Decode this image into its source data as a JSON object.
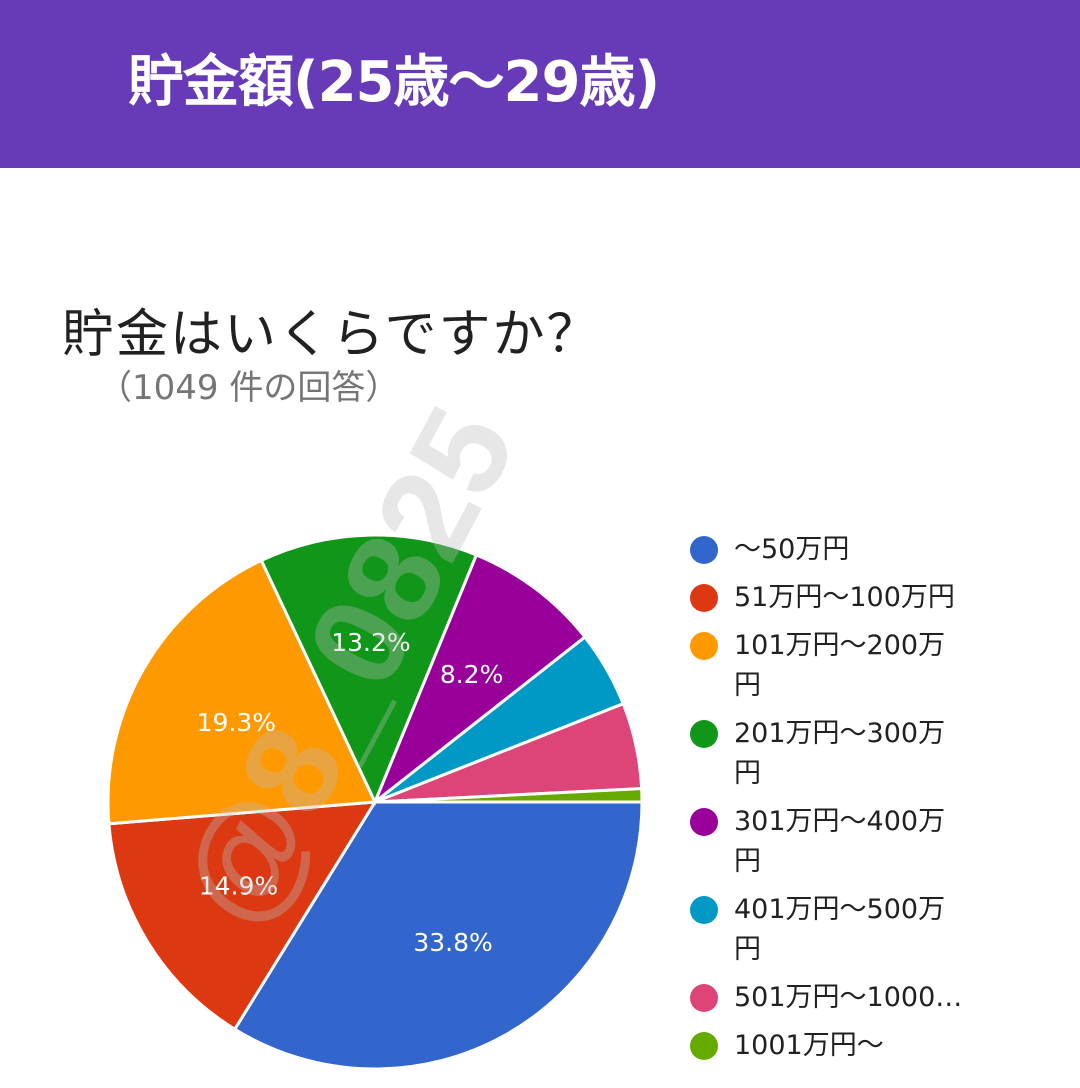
{
  "header": {
    "title": "貯金額(25歳〜29歳)",
    "bg_color": "#673ab7"
  },
  "question": {
    "title": "貯金はいくらですか？",
    "responses": "（1049 件の回答）"
  },
  "chart_data": {
    "type": "pie",
    "categories": [
      "〜50万円",
      "51万円〜100万円",
      "101万円〜200万円",
      "201万円〜300万円",
      "301万円〜400万円",
      "401万円〜500万円",
      "501万円〜1000…",
      "1001万円〜"
    ],
    "values": [
      33.8,
      14.9,
      19.3,
      13.2,
      8.2,
      4.6,
      5.2,
      0.8
    ],
    "data_labels": [
      "33.8%",
      "14.9%",
      "19.3%",
      "13.2%",
      "8.2%",
      "",
      "",
      ""
    ],
    "colors": [
      "#3366cc",
      "#dc3912",
      "#ff9900",
      "#109618",
      "#990099",
      "#0099c6",
      "#dd4477",
      "#66aa00"
    ],
    "legend_position": "right"
  },
  "legend": {
    "items": [
      [
        "〜50万円"
      ],
      [
        "51万円〜100万円"
      ],
      [
        "101万円〜200万",
        "円"
      ],
      [
        "201万円〜300万",
        "円"
      ],
      [
        "301万円〜400万",
        "円"
      ],
      [
        "401万円〜500万",
        "円"
      ],
      [
        "501万円〜1000…"
      ],
      [
        "1001万円〜"
      ]
    ]
  },
  "watermark": {
    "text": "@8_0825"
  }
}
